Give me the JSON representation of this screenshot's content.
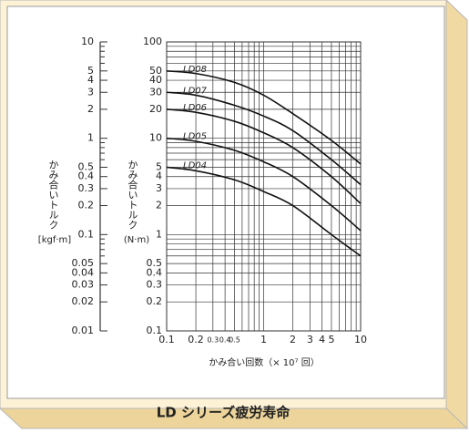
{
  "chart_data": {
    "type": "line",
    "title": "LD シリーズ疲労寿命",
    "xlabel": "かみ合い回数（× 10⁷ 回）",
    "ylabel": "かみ合いトルク",
    "yunit": "(N·m)",
    "y2label": "かみ合いトルク",
    "y2unit": "[kgf·m]",
    "log_x": true,
    "log_y": true,
    "grid": true,
    "xlim": [
      0.1,
      10
    ],
    "ylim": [
      0.1,
      100
    ],
    "y2lim": [
      0.01,
      10
    ],
    "y2_position": "left",
    "xticks": [
      0.1,
      0.2,
      0.3,
      0.4,
      0.5,
      1,
      2,
      3,
      4,
      5,
      10
    ],
    "xminor": [
      0.6,
      0.7,
      0.8,
      0.9,
      6,
      7,
      8,
      9
    ],
    "yticks": [
      100,
      50,
      40,
      30,
      20,
      10,
      5,
      4,
      3,
      2,
      1,
      0.5,
      0.4,
      0.3,
      0.2,
      0.1
    ],
    "yminor": [
      90,
      80,
      70,
      60,
      9,
      8,
      7,
      6,
      0.9,
      0.8,
      0.7,
      0.6
    ],
    "y2ticks": [
      10,
      5,
      4,
      3,
      2,
      1,
      0.5,
      0.4,
      0.3,
      0.2,
      0.1,
      0.05,
      0.04,
      0.03,
      0.02,
      0.01
    ],
    "y2minor": [
      9,
      8,
      7,
      6,
      0.9,
      0.8,
      0.7,
      0.6,
      0.09,
      0.08,
      0.07,
      0.06
    ],
    "x": [
      0.1,
      0.2,
      0.5,
      1,
      2,
      5,
      10
    ],
    "color": "#111111",
    "series": [
      {
        "name": "LD08",
        "values": [
          50,
          47,
          38,
          28,
          18,
          9.5,
          5.4
        ]
      },
      {
        "name": "LD07",
        "values": [
          30,
          28,
          22,
          17,
          12,
          6,
          3.3
        ]
      },
      {
        "name": "LD06",
        "values": [
          20,
          18.6,
          15,
          11.4,
          8,
          4,
          2.1
        ]
      },
      {
        "name": "LD05",
        "values": [
          10,
          9.3,
          7.5,
          5.7,
          4,
          2,
          1.1
        ]
      },
      {
        "name": "LD04",
        "values": [
          5,
          4.6,
          3.7,
          2.8,
          2,
          1,
          0.6
        ]
      }
    ]
  }
}
